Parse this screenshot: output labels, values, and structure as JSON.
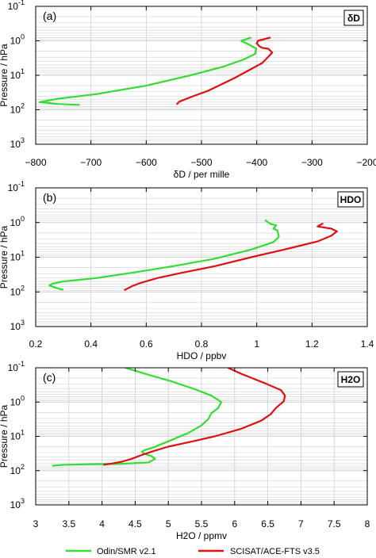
{
  "colors": {
    "odin": "#33dd33",
    "ace": "#dd1111",
    "grid": "#cfcfcf"
  },
  "legend": {
    "odin_label": "Odin/SMR v2.1",
    "ace_label": "SCISAT/ACE-FTS v3.5"
  },
  "ylabel": "Pressure / hPa",
  "chart_data": [
    {
      "type": "line",
      "panel_label": "(a)",
      "tag": "δD",
      "xlabel": "δD / per mille",
      "xlim": [
        -800,
        -200
      ],
      "xticks": [
        -800,
        -700,
        -600,
        -500,
        -400,
        -300,
        -200
      ],
      "ylim": [
        0.1,
        1000
      ],
      "yscale": "log-inverted",
      "series": [
        {
          "name": "Odin/SMR v2.1",
          "color": "#33dd33",
          "x": [
            -410,
            -428,
            -413,
            -401,
            -403,
            -422,
            -460,
            -520,
            -600,
            -690,
            -760,
            -793,
            -760,
            -720
          ],
          "y": [
            0.8,
            1.0,
            1.3,
            1.7,
            2.4,
            3.4,
            5.6,
            10,
            20,
            35,
            48,
            60,
            68,
            72
          ]
        },
        {
          "name": "SCISAT/ACE-FTS v3.5",
          "color": "#dd1111",
          "x": [
            -375,
            -398,
            -400,
            -395,
            -390,
            -379,
            -372,
            -390,
            -440,
            -488,
            -518,
            -540,
            -545
          ],
          "y": [
            0.8,
            1.0,
            1.2,
            1.45,
            1.6,
            1.7,
            2.2,
            4.4,
            12,
            28,
            42,
            58,
            70
          ]
        }
      ]
    },
    {
      "type": "line",
      "panel_label": "(b)",
      "tag": "HDO",
      "xlabel": "HDO / ppbv",
      "xlim": [
        0.2,
        1.4
      ],
      "xticks": [
        "0.2",
        "0.4",
        "0.6",
        "0.8",
        "1",
        "1.2",
        "1.4"
      ],
      "ylim": [
        0.1,
        1000
      ],
      "yscale": "log-inverted",
      "series": [
        {
          "name": "Odin/SMR v2.1",
          "color": "#33dd33",
          "x": [
            1.03,
            1.05,
            1.07,
            1.06,
            1.075,
            1.08,
            1.06,
            0.98,
            0.85,
            0.7,
            0.55,
            0.42,
            0.3,
            0.26,
            0.25,
            0.27,
            0.3
          ],
          "y": [
            0.85,
            1.1,
            1.2,
            1.5,
            1.7,
            2.6,
            3.7,
            6,
            11,
            18,
            28,
            40,
            50,
            58,
            65,
            75,
            88
          ]
        },
        {
          "name": "SCISAT/ACE-FTS v3.5",
          "color": "#dd1111",
          "x": [
            1.24,
            1.22,
            1.27,
            1.29,
            1.27,
            1.22,
            1.1,
            0.98,
            0.85,
            0.73,
            0.64,
            0.58,
            0.55,
            0.52
          ],
          "y": [
            1.05,
            1.3,
            1.5,
            1.8,
            2.4,
            3.5,
            6,
            10,
            18,
            28,
            40,
            55,
            68,
            90
          ]
        }
      ]
    },
    {
      "type": "line",
      "panel_label": "(c)",
      "tag": "H2O",
      "xlabel": "H2O / ppmv",
      "xlim": [
        3,
        8
      ],
      "xticks": [
        "3",
        "3.5",
        "4",
        "4.5",
        "5",
        "5.5",
        "6",
        "6.5",
        "7",
        "7.5",
        "8"
      ],
      "ylim": [
        0.1,
        1000
      ],
      "yscale": "log-inverted",
      "series": [
        {
          "name": "Odin/SMR v2.1",
          "color": "#33dd33",
          "x": [
            4.35,
            4.7,
            5.05,
            5.4,
            5.65,
            5.8,
            5.75,
            5.65,
            5.6,
            5.5,
            5.3,
            5.0,
            4.75,
            4.65,
            4.6,
            4.63,
            4.75,
            4.8,
            4.7,
            4.3,
            3.8,
            3.4,
            3.25
          ],
          "y": [
            0.1,
            0.16,
            0.25,
            0.42,
            0.65,
            1.0,
            1.5,
            2.1,
            3.2,
            4.8,
            8,
            14,
            22,
            25,
            28,
            32,
            38,
            45,
            58,
            63,
            65,
            68,
            72
          ]
        },
        {
          "name": "SCISAT/ACE-FTS v3.5",
          "color": "#dd1111",
          "x": [
            5.9,
            6.1,
            6.45,
            6.7,
            6.76,
            6.74,
            6.62,
            6.55,
            6.4,
            6.1,
            5.7,
            5.3,
            5.0,
            4.75,
            4.6,
            4.45,
            4.3,
            4.15,
            4.02
          ],
          "y": [
            0.1,
            0.15,
            0.28,
            0.45,
            0.65,
            0.95,
            1.5,
            2.2,
            3.5,
            6,
            10,
            15,
            20,
            28,
            35,
            45,
            55,
            62,
            68
          ]
        }
      ]
    }
  ]
}
